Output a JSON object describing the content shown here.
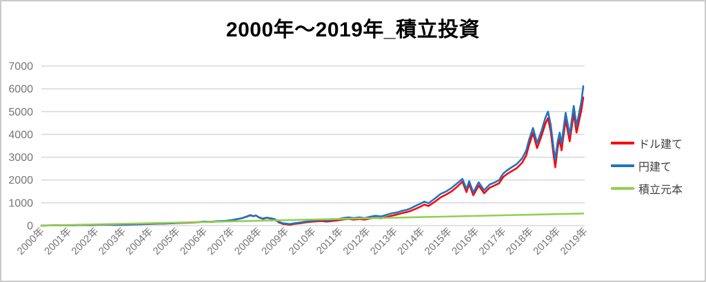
{
  "title": "2000年～2019年_積立投資",
  "colors": {
    "usd": "#FF0000",
    "jpy": "#1F74C0",
    "principal": "#92D050",
    "gridline": "#D9D9D9",
    "axis_label": "#757575",
    "legend_text": "#3F3F3F",
    "frame_border": "#CBCBCB"
  },
  "chart_data": {
    "type": "line",
    "title": "2000年～2019年_積立投資",
    "xlabel": "",
    "ylabel": "",
    "grid": true,
    "legend_position": "right",
    "y_axis": {
      "range": [
        0,
        7000
      ],
      "ticks": [
        0,
        1000,
        2000,
        3000,
        4000,
        5000,
        6000,
        7000
      ]
    },
    "x_axis": {
      "range": [
        2000,
        2020
      ],
      "tick_labels": [
        "2000年",
        "2001年",
        "2002年",
        "2003年",
        "2004年",
        "2005年",
        "2006年",
        "2007年",
        "2008年",
        "2009年",
        "2010年",
        "2011年",
        "2012年",
        "2013年",
        "2014年",
        "2015年",
        "2016年",
        "2017年",
        "2018年",
        "2019年",
        "2019年"
      ]
    },
    "series": [
      {
        "id": "usd",
        "name": "ドル建て",
        "color": "#FF0000",
        "points": [
          [
            2000.0,
            3
          ],
          [
            2000.3,
            9
          ],
          [
            2000.6,
            15
          ],
          [
            2000.9,
            20
          ],
          [
            2001.2,
            17
          ],
          [
            2001.5,
            27
          ],
          [
            2001.8,
            22
          ],
          [
            2002.1,
            38
          ],
          [
            2002.4,
            44
          ],
          [
            2002.7,
            31
          ],
          [
            2003.0,
            37
          ],
          [
            2003.3,
            47
          ],
          [
            2003.6,
            58
          ],
          [
            2003.9,
            70
          ],
          [
            2004.2,
            82
          ],
          [
            2004.5,
            88
          ],
          [
            2004.8,
            101
          ],
          [
            2005.1,
            114
          ],
          [
            2005.4,
            127
          ],
          [
            2005.7,
            142
          ],
          [
            2006.0,
            168
          ],
          [
            2006.2,
            158
          ],
          [
            2006.5,
            180
          ],
          [
            2006.8,
            198
          ],
          [
            2007.0,
            232
          ],
          [
            2007.2,
            280
          ],
          [
            2007.4,
            328
          ],
          [
            2007.55,
            398
          ],
          [
            2007.7,
            462
          ],
          [
            2007.8,
            412
          ],
          [
            2007.9,
            448
          ],
          [
            2008.0,
            362
          ],
          [
            2008.15,
            296
          ],
          [
            2008.3,
            342
          ],
          [
            2008.45,
            306
          ],
          [
            2008.6,
            262
          ],
          [
            2008.75,
            135
          ],
          [
            2008.9,
            70
          ],
          [
            2009.0,
            60
          ],
          [
            2009.15,
            35
          ],
          [
            2009.3,
            72
          ],
          [
            2009.5,
            100
          ],
          [
            2009.7,
            135
          ],
          [
            2009.9,
            162
          ],
          [
            2010.1,
            188
          ],
          [
            2010.3,
            202
          ],
          [
            2010.5,
            176
          ],
          [
            2010.7,
            202
          ],
          [
            2010.9,
            228
          ],
          [
            2011.1,
            266
          ],
          [
            2011.3,
            292
          ],
          [
            2011.5,
            264
          ],
          [
            2011.7,
            288
          ],
          [
            2011.9,
            262
          ],
          [
            2012.1,
            312
          ],
          [
            2012.3,
            348
          ],
          [
            2012.5,
            320
          ],
          [
            2012.7,
            378
          ],
          [
            2012.9,
            435
          ],
          [
            2013.1,
            490
          ],
          [
            2013.25,
            540
          ],
          [
            2013.45,
            590
          ],
          [
            2013.6,
            645
          ],
          [
            2013.8,
            745
          ],
          [
            2013.95,
            830
          ],
          [
            2014.1,
            920
          ],
          [
            2014.25,
            860
          ],
          [
            2014.5,
            1060
          ],
          [
            2014.7,
            1240
          ],
          [
            2014.9,
            1360
          ],
          [
            2015.1,
            1500
          ],
          [
            2015.3,
            1700
          ],
          [
            2015.5,
            1930
          ],
          [
            2015.65,
            1470
          ],
          [
            2015.75,
            1820
          ],
          [
            2015.9,
            1330
          ],
          [
            2016.1,
            1760
          ],
          [
            2016.3,
            1420
          ],
          [
            2016.5,
            1660
          ],
          [
            2016.7,
            1770
          ],
          [
            2016.85,
            1860
          ],
          [
            2017.0,
            2130
          ],
          [
            2017.15,
            2270
          ],
          [
            2017.3,
            2380
          ],
          [
            2017.5,
            2520
          ],
          [
            2017.7,
            2760
          ],
          [
            2017.85,
            3080
          ],
          [
            2017.95,
            3520
          ],
          [
            2018.1,
            4060
          ],
          [
            2018.25,
            3400
          ],
          [
            2018.4,
            3900
          ],
          [
            2018.55,
            4460
          ],
          [
            2018.65,
            4720
          ],
          [
            2018.75,
            4140
          ],
          [
            2018.85,
            3150
          ],
          [
            2018.92,
            2560
          ],
          [
            2019.0,
            3380
          ],
          [
            2019.08,
            3800
          ],
          [
            2019.15,
            3300
          ],
          [
            2019.3,
            4640
          ],
          [
            2019.45,
            3700
          ],
          [
            2019.6,
            4930
          ],
          [
            2019.7,
            4080
          ],
          [
            2019.8,
            4620
          ],
          [
            2019.88,
            5080
          ],
          [
            2019.95,
            5620
          ]
        ]
      },
      {
        "id": "jpy",
        "name": "円建て",
        "color": "#1F74C0",
        "points": [
          [
            2000.0,
            3
          ],
          [
            2000.3,
            10
          ],
          [
            2000.6,
            16
          ],
          [
            2000.9,
            22
          ],
          [
            2001.2,
            20
          ],
          [
            2001.5,
            30
          ],
          [
            2001.8,
            26
          ],
          [
            2002.1,
            42
          ],
          [
            2002.4,
            48
          ],
          [
            2002.7,
            36
          ],
          [
            2003.0,
            42
          ],
          [
            2003.3,
            52
          ],
          [
            2003.6,
            64
          ],
          [
            2003.9,
            76
          ],
          [
            2004.2,
            88
          ],
          [
            2004.5,
            94
          ],
          [
            2004.8,
            108
          ],
          [
            2005.1,
            122
          ],
          [
            2005.4,
            136
          ],
          [
            2005.7,
            152
          ],
          [
            2006.0,
            180
          ],
          [
            2006.2,
            170
          ],
          [
            2006.5,
            192
          ],
          [
            2006.8,
            210
          ],
          [
            2007.0,
            240
          ],
          [
            2007.2,
            285
          ],
          [
            2007.4,
            330
          ],
          [
            2007.55,
            390
          ],
          [
            2007.7,
            450
          ],
          [
            2007.8,
            410
          ],
          [
            2007.9,
            440
          ],
          [
            2008.0,
            370
          ],
          [
            2008.15,
            310
          ],
          [
            2008.3,
            350
          ],
          [
            2008.45,
            320
          ],
          [
            2008.6,
            280
          ],
          [
            2008.75,
            160
          ],
          [
            2008.9,
            100
          ],
          [
            2009.0,
            90
          ],
          [
            2009.15,
            65
          ],
          [
            2009.3,
            100
          ],
          [
            2009.5,
            130
          ],
          [
            2009.7,
            170
          ],
          [
            2009.9,
            200
          ],
          [
            2010.1,
            230
          ],
          [
            2010.3,
            250
          ],
          [
            2010.5,
            220
          ],
          [
            2010.7,
            250
          ],
          [
            2010.9,
            280
          ],
          [
            2011.1,
            330
          ],
          [
            2011.3,
            360
          ],
          [
            2011.5,
            330
          ],
          [
            2011.7,
            360
          ],
          [
            2011.9,
            330
          ],
          [
            2012.1,
            390
          ],
          [
            2012.3,
            430
          ],
          [
            2012.5,
            400
          ],
          [
            2012.7,
            470
          ],
          [
            2012.9,
            540
          ],
          [
            2013.1,
            580
          ],
          [
            2013.25,
            640
          ],
          [
            2013.45,
            690
          ],
          [
            2013.6,
            760
          ],
          [
            2013.8,
            880
          ],
          [
            2013.95,
            960
          ],
          [
            2014.1,
            1050
          ],
          [
            2014.25,
            980
          ],
          [
            2014.5,
            1200
          ],
          [
            2014.7,
            1390
          ],
          [
            2014.9,
            1500
          ],
          [
            2015.1,
            1650
          ],
          [
            2015.3,
            1850
          ],
          [
            2015.5,
            2050
          ],
          [
            2015.65,
            1600
          ],
          [
            2015.75,
            1950
          ],
          [
            2015.9,
            1450
          ],
          [
            2016.1,
            1900
          ],
          [
            2016.3,
            1550
          ],
          [
            2016.5,
            1800
          ],
          [
            2016.7,
            1900
          ],
          [
            2016.85,
            2000
          ],
          [
            2017.0,
            2280
          ],
          [
            2017.15,
            2430
          ],
          [
            2017.3,
            2550
          ],
          [
            2017.5,
            2700
          ],
          [
            2017.7,
            2950
          ],
          [
            2017.85,
            3300
          ],
          [
            2017.95,
            3750
          ],
          [
            2018.1,
            4280
          ],
          [
            2018.25,
            3620
          ],
          [
            2018.4,
            4120
          ],
          [
            2018.55,
            4720
          ],
          [
            2018.65,
            5000
          ],
          [
            2018.75,
            4420
          ],
          [
            2018.85,
            3450
          ],
          [
            2018.92,
            2870
          ],
          [
            2019.0,
            3650
          ],
          [
            2019.08,
            4080
          ],
          [
            2019.15,
            3580
          ],
          [
            2019.3,
            4950
          ],
          [
            2019.45,
            3980
          ],
          [
            2019.6,
            5250
          ],
          [
            2019.7,
            4380
          ],
          [
            2019.8,
            4950
          ],
          [
            2019.88,
            5450
          ],
          [
            2019.95,
            6120
          ]
        ]
      },
      {
        "id": "principal",
        "name": "積立元本",
        "color": "#92D050",
        "points": [
          [
            2000.0,
            0
          ],
          [
            2019.95,
            530
          ]
        ]
      }
    ]
  },
  "legend": {
    "entries": [
      {
        "label": "ドル建て",
        "color": "#FF0000"
      },
      {
        "label": "円建て",
        "color": "#1F74C0"
      },
      {
        "label": "積立元本",
        "color": "#92D050"
      }
    ]
  }
}
